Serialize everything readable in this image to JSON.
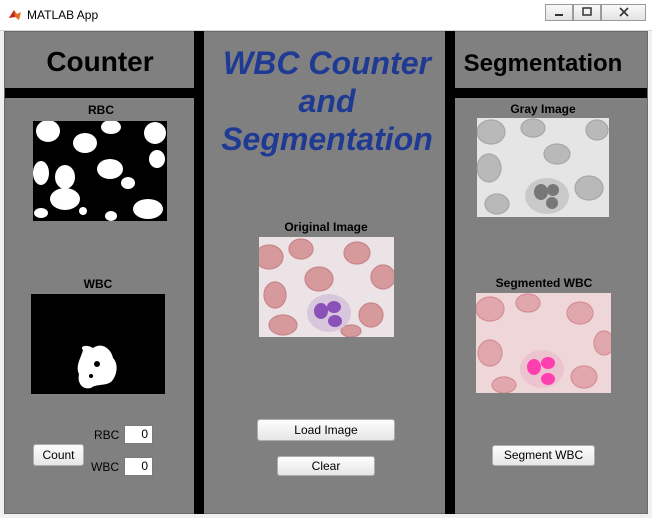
{
  "window": {
    "title": "MATLAB App",
    "controls": [
      "minimize-icon",
      "maximize-icon",
      "close-icon"
    ]
  },
  "panels": {
    "counter": {
      "title": "Counter",
      "rbc_label": "RBC",
      "wbc_label": "WBC",
      "count_button": "Count",
      "rbc_field_label": "RBC",
      "rbc_value": "0",
      "wbc_field_label": "WBC",
      "wbc_value": "0"
    },
    "center": {
      "title_line1": "WBC Counter",
      "title_line2": "and",
      "title_line3": "Segmentation",
      "original_label": "Original Image",
      "load_button": "Load Image",
      "clear_button": "Clear"
    },
    "segmentation": {
      "title": "Segmentation",
      "gray_label": "Gray Image",
      "segmented_label": "Segmented WBC",
      "segment_button": "Segment WBC"
    }
  },
  "colors": {
    "panel_bg": "#808080",
    "divider": "#000000",
    "title_blue": "#1f3a93"
  }
}
